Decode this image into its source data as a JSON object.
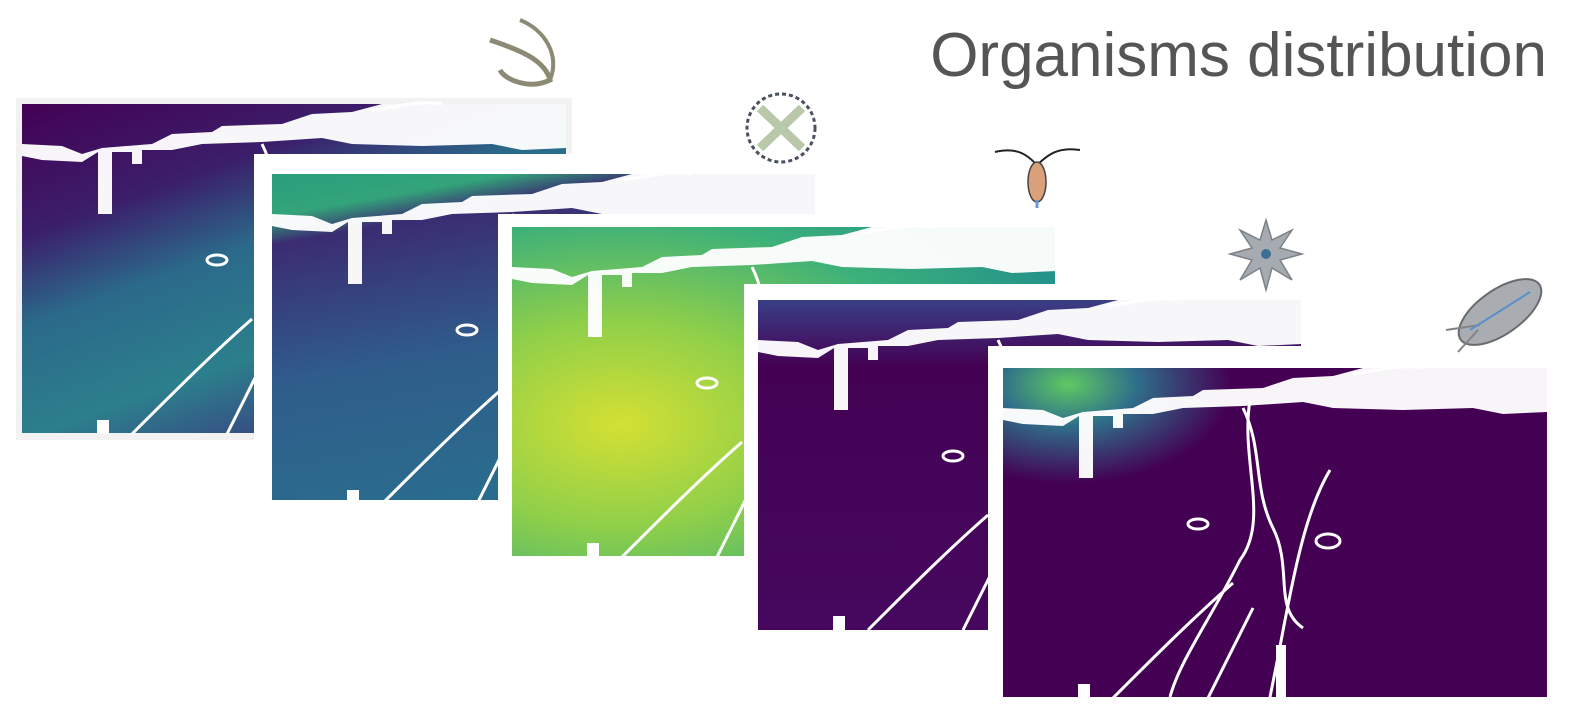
{
  "title": "Organisms distribution"
}
